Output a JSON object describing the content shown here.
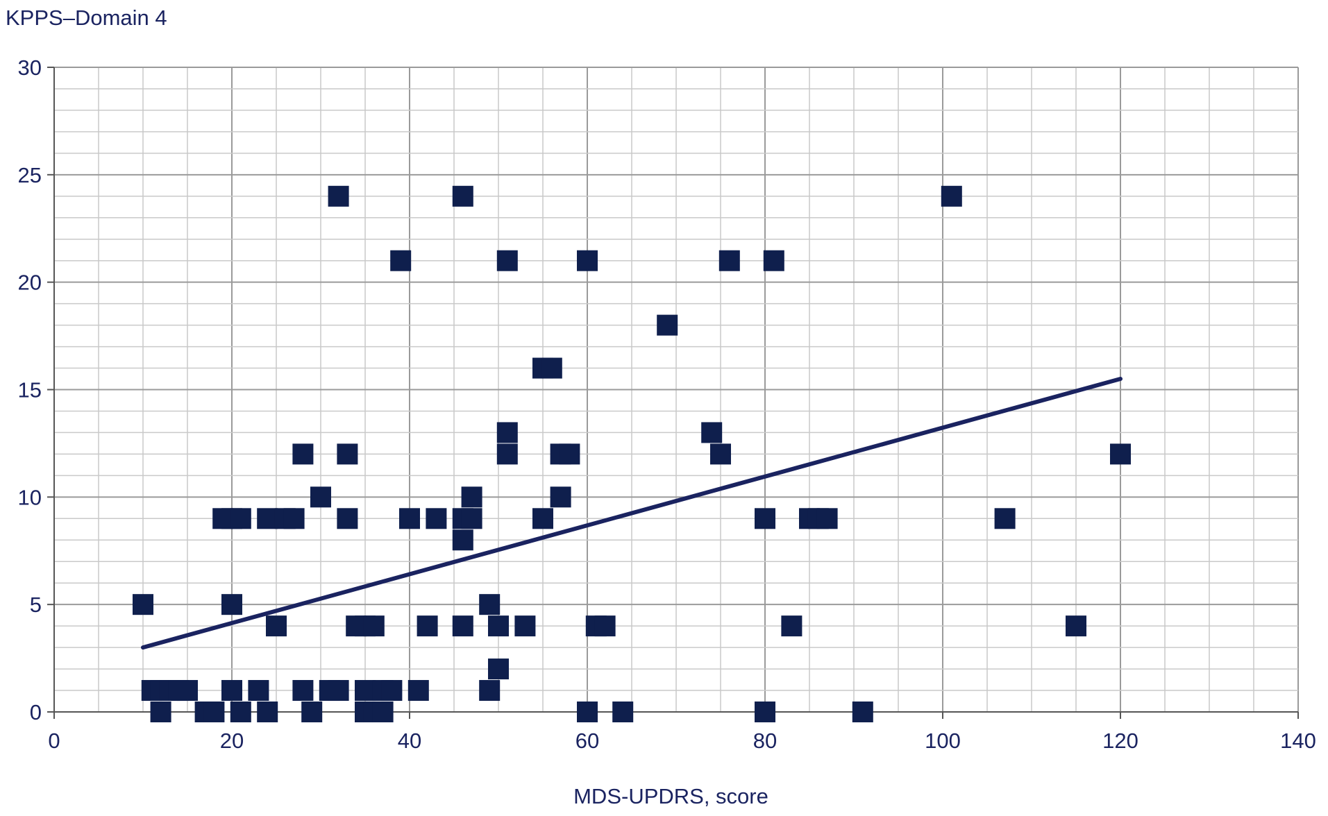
{
  "chart_data": {
    "type": "scatter",
    "title": "",
    "ylabel": "KPPS–Domain 4",
    "xlabel": "MDS-UPDRS, score",
    "xlim": [
      0,
      140
    ],
    "ylim": [
      0,
      30
    ],
    "x_ticks": [
      0,
      20,
      40,
      60,
      80,
      100,
      120,
      140
    ],
    "y_ticks": [
      0,
      5,
      10,
      15,
      20,
      25,
      30
    ],
    "x_tick_labels": [
      "0",
      "20",
      "40",
      "60",
      "80",
      "100",
      "120",
      "140"
    ],
    "y_tick_labels": [
      "0",
      "5",
      "10",
      "15",
      "20",
      "25",
      "30"
    ],
    "grid": true,
    "legend": "none",
    "colors": {
      "marker": "#0f1f4d",
      "trend": "#1a2360",
      "grid_major": "#9a9a9a",
      "grid_minor": "#c9c9c9",
      "text": "#1a2360"
    },
    "series": [
      {
        "marker": "square",
        "points": [
          [
            10,
            5
          ],
          [
            11,
            1
          ],
          [
            12,
            0
          ],
          [
            12,
            1
          ],
          [
            13,
            1
          ],
          [
            14,
            1
          ],
          [
            15,
            1
          ],
          [
            17,
            0
          ],
          [
            18,
            0
          ],
          [
            19,
            9
          ],
          [
            20,
            1
          ],
          [
            20,
            5
          ],
          [
            20,
            9
          ],
          [
            21,
            0
          ],
          [
            21,
            9
          ],
          [
            23,
            1
          ],
          [
            24,
            0
          ],
          [
            24,
            9
          ],
          [
            25,
            4
          ],
          [
            26,
            9
          ],
          [
            27,
            9
          ],
          [
            28,
            1
          ],
          [
            28,
            12
          ],
          [
            29,
            0
          ],
          [
            30,
            10
          ],
          [
            31,
            1
          ],
          [
            32,
            1
          ],
          [
            32,
            24
          ],
          [
            33,
            9
          ],
          [
            33,
            12
          ],
          [
            34,
            4
          ],
          [
            35,
            0
          ],
          [
            35,
            1
          ],
          [
            35,
            4
          ],
          [
            36,
            0
          ],
          [
            36,
            4
          ],
          [
            37,
            0
          ],
          [
            37,
            1
          ],
          [
            38,
            1
          ],
          [
            39,
            21
          ],
          [
            40,
            9
          ],
          [
            41,
            1
          ],
          [
            42,
            4
          ],
          [
            43,
            9
          ],
          [
            46,
            4
          ],
          [
            46,
            8
          ],
          [
            46,
            9
          ],
          [
            46,
            24
          ],
          [
            47,
            9
          ],
          [
            47,
            10
          ],
          [
            49,
            1
          ],
          [
            49,
            5
          ],
          [
            50,
            2
          ],
          [
            50,
            4
          ],
          [
            51,
            12
          ],
          [
            51,
            13
          ],
          [
            51,
            21
          ],
          [
            53,
            4
          ],
          [
            55,
            9
          ],
          [
            55,
            16
          ],
          [
            56,
            16
          ],
          [
            57,
            10
          ],
          [
            57,
            12
          ],
          [
            58,
            12
          ],
          [
            60,
            0
          ],
          [
            60,
            21
          ],
          [
            61,
            4
          ],
          [
            62,
            4
          ],
          [
            64,
            0
          ],
          [
            69,
            18
          ],
          [
            74,
            13
          ],
          [
            75,
            12
          ],
          [
            76,
            21
          ],
          [
            80,
            0
          ],
          [
            80,
            9
          ],
          [
            81,
            21
          ],
          [
            83,
            4
          ],
          [
            85,
            9
          ],
          [
            86,
            9
          ],
          [
            87,
            9
          ],
          [
            91,
            0
          ],
          [
            101,
            24
          ],
          [
            107,
            9
          ],
          [
            115,
            4
          ],
          [
            120,
            12
          ]
        ]
      }
    ],
    "trendline": {
      "x": [
        10,
        120
      ],
      "y": [
        3,
        15.5
      ]
    }
  }
}
